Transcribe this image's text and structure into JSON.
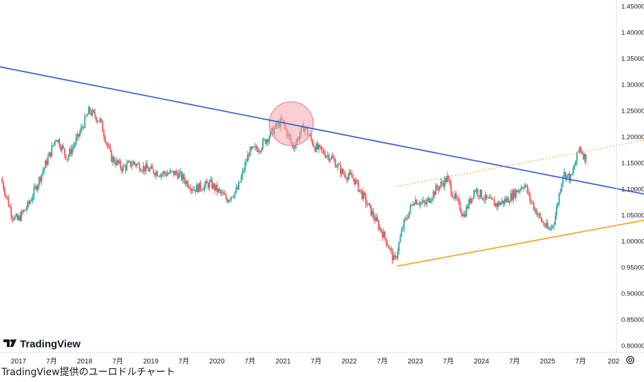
{
  "caption": "TradingView提供のユーロドルチャート",
  "logo": {
    "text": "TradingView",
    "icon": "tradingview-logo-icon"
  },
  "settings_icon": "gear-icon",
  "colors": {
    "up_candle": "#26a69a",
    "down_candle": "#ef5350",
    "trendline_blue": "#3d64d6",
    "support_orange": "#f4a62a",
    "highlight_circle": "#f7a6ad",
    "axis_text": "#131722",
    "axis_line": "#e0e3eb"
  },
  "chart_data": {
    "type": "candlestick",
    "symbol": "EURUSD",
    "ylim": [
      0.78,
      1.45
    ],
    "y_ticks": [
      "1.45000",
      "1.40000",
      "1.35000",
      "1.30000",
      "1.25000",
      "1.20000",
      "1.15000",
      "1.10000",
      "1.05000",
      "1.00000",
      "0.95000",
      "0.90000",
      "0.85000",
      "0.80000"
    ],
    "x_ticks": [
      "2017",
      "7月",
      "2018",
      "7月",
      "2019",
      "7月",
      "2020",
      "7月",
      "2021",
      "7月",
      "2022",
      "7月",
      "2023",
      "7月",
      "2024",
      "7月",
      "2025",
      "7月",
      "202"
    ],
    "price_path": [
      [
        "2016-10-01",
        1.12
      ],
      [
        "2016-12-01",
        1.05
      ],
      [
        "2017-01-01",
        1.04
      ],
      [
        "2017-03-01",
        1.07
      ],
      [
        "2017-05-01",
        1.12
      ],
      [
        "2017-07-01",
        1.17
      ],
      [
        "2017-08-01",
        1.2
      ],
      [
        "2017-10-01",
        1.16
      ],
      [
        "2017-12-01",
        1.2
      ],
      [
        "2018-02-01",
        1.25
      ],
      [
        "2018-04-01",
        1.23
      ],
      [
        "2018-06-01",
        1.16
      ],
      [
        "2018-08-01",
        1.14
      ],
      [
        "2018-10-01",
        1.15
      ],
      [
        "2018-12-01",
        1.14
      ],
      [
        "2019-03-01",
        1.13
      ],
      [
        "2019-06-01",
        1.13
      ],
      [
        "2019-09-01",
        1.1
      ],
      [
        "2019-12-01",
        1.11
      ],
      [
        "2020-02-01",
        1.09
      ],
      [
        "2020-03-01",
        1.08
      ],
      [
        "2020-05-01",
        1.1
      ],
      [
        "2020-07-01",
        1.17
      ],
      [
        "2020-09-01",
        1.18
      ],
      [
        "2020-12-01",
        1.22
      ],
      [
        "2021-01-01",
        1.23
      ],
      [
        "2021-03-01",
        1.18
      ],
      [
        "2021-05-01",
        1.22
      ],
      [
        "2021-07-01",
        1.18
      ],
      [
        "2021-10-01",
        1.16
      ],
      [
        "2021-12-01",
        1.13
      ],
      [
        "2022-02-01",
        1.12
      ],
      [
        "2022-04-01",
        1.08
      ],
      [
        "2022-06-01",
        1.04
      ],
      [
        "2022-08-01",
        1.0
      ],
      [
        "2022-09-15",
        0.96
      ],
      [
        "2022-11-01",
        1.03
      ],
      [
        "2023-01-01",
        1.08
      ],
      [
        "2023-03-01",
        1.07
      ],
      [
        "2023-05-01",
        1.1
      ],
      [
        "2023-07-01",
        1.12
      ],
      [
        "2023-08-01",
        1.09
      ],
      [
        "2023-10-01",
        1.05
      ],
      [
        "2023-12-01",
        1.1
      ],
      [
        "2024-02-01",
        1.08
      ],
      [
        "2024-04-01",
        1.07
      ],
      [
        "2024-06-01",
        1.08
      ],
      [
        "2024-09-01",
        1.11
      ],
      [
        "2024-10-01",
        1.08
      ],
      [
        "2024-12-01",
        1.04
      ],
      [
        "2025-01-15",
        1.02
      ],
      [
        "2025-02-15",
        1.04
      ],
      [
        "2025-04-01",
        1.13
      ],
      [
        "2025-05-15",
        1.12
      ],
      [
        "2025-07-01",
        1.18
      ],
      [
        "2025-08-01",
        1.16
      ]
    ],
    "trendlines": [
      {
        "name": "",
        "style": "solid",
        "color": "blue",
        "points": [
          [
            "2015-09-01",
            1.36
          ],
          [
            "2026-09-01",
            1.085
          ]
        ]
      },
      {
        "name": "",
        "style": "solid",
        "color": "orange",
        "points": [
          [
            "2022-09-20",
            0.952
          ],
          [
            "2026-09-01",
            1.045
          ]
        ]
      },
      {
        "name": "",
        "style": "dotted",
        "color": "orange",
        "points": [
          [
            "2022-09-20",
            1.105
          ],
          [
            "2026-09-01",
            1.198
          ]
        ]
      }
    ],
    "highlight": {
      "shape": "circle",
      "center": [
        "2021-02-15",
        1.225
      ]
    },
    "grid": false
  }
}
